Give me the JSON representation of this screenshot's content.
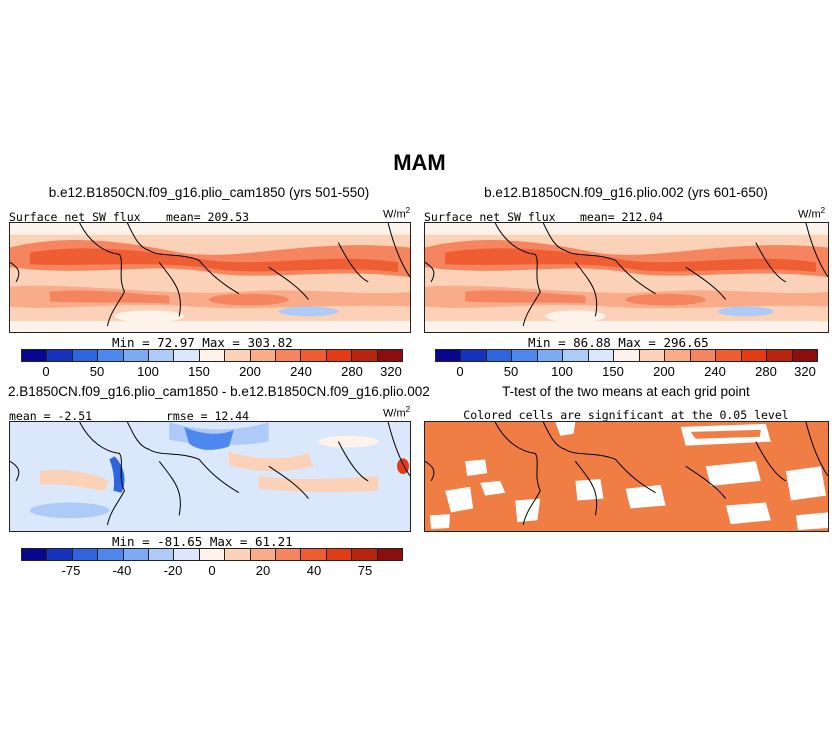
{
  "title": "MAM",
  "panels": {
    "p1": {
      "title": "b.e12.B1850CN.f09_g16.plio_cam1850 (yrs 501-550)",
      "left_label": "Surface net SW flux",
      "center_label": "mean= 209.53",
      "unit_base": "W/m",
      "unit_exp": "2",
      "minmax": "Min =  72.97 Max = 303.82"
    },
    "p2": {
      "title": "b.e12.B1850CN.f09_g16.plio.002 (yrs 601-650)",
      "left_label": "Surface net SW flux",
      "center_label": "mean= 212.04",
      "unit_base": "W/m",
      "unit_exp": "2",
      "minmax": "Min =  86.88 Max = 296.65"
    },
    "p3": {
      "title": "2.B1850CN.f09_g16.plio_cam1850 - b.e12.B1850CN.f09_g16.plio.002",
      "left_label": "mean = -2.51",
      "center_label": "rmse = 12.44",
      "unit_base": "W/m",
      "unit_exp": "2",
      "minmax": "Min = -81.65 Max =  61.21"
    },
    "p4": {
      "title": "T-test of the two means at each grid point",
      "subtitle": "Colored cells are significant at the 0.05 level"
    }
  },
  "colorbars": {
    "abs": {
      "labels": [
        "0",
        "50",
        "100",
        "150",
        "200",
        "240",
        "280",
        "320"
      ]
    },
    "diff": {
      "labels": [
        "-75",
        "-40",
        "-20",
        "0",
        "20",
        "40",
        "75"
      ]
    }
  },
  "colors": {
    "scale": [
      "#08088e",
      "#1432bc",
      "#2e64de",
      "#4e88ee",
      "#7eaaf4",
      "#aecbf8",
      "#dbe8fb",
      "#fdf3ea",
      "#fbd2b8",
      "#f8ac8a",
      "#f5855f",
      "#ef5e33",
      "#e13c16",
      "#b82410",
      "#8a0e0e"
    ],
    "land_line": "#000000",
    "ttest_fill": "#f07d43"
  }
}
